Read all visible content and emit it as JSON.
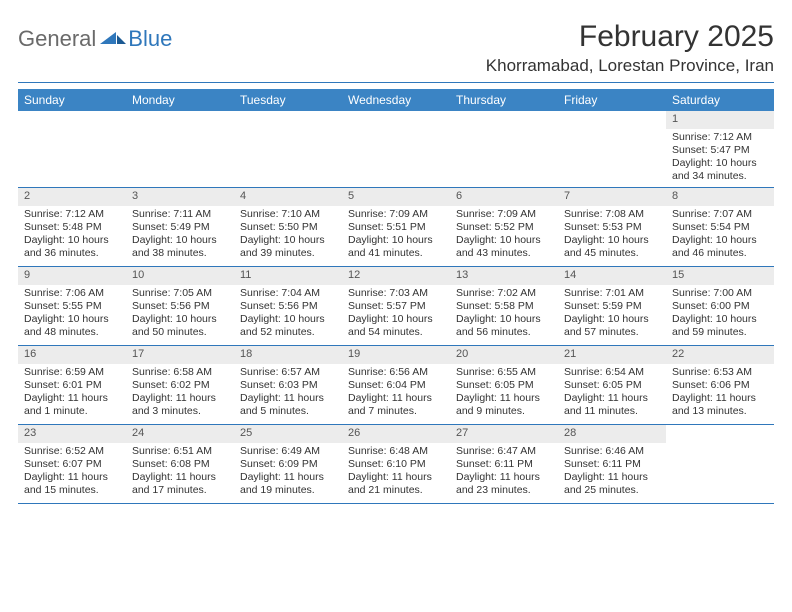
{
  "logo": {
    "general": "General",
    "blue": "Blue"
  },
  "title": "February 2025",
  "location": "Khorramabad, Lorestan Province, Iran",
  "colors": {
    "header_bg": "#3b84c4",
    "header_text": "#ffffff",
    "rule": "#2f77bb",
    "daynum_bg": "#ececec",
    "text": "#333333",
    "logo_gray": "#6a6a6a",
    "logo_blue": "#2f77bb"
  },
  "dow": [
    "Sunday",
    "Monday",
    "Tuesday",
    "Wednesday",
    "Thursday",
    "Friday",
    "Saturday"
  ],
  "weeks": [
    [
      {
        "n": "",
        "sr": "",
        "ss": "",
        "dl": ""
      },
      {
        "n": "",
        "sr": "",
        "ss": "",
        "dl": ""
      },
      {
        "n": "",
        "sr": "",
        "ss": "",
        "dl": ""
      },
      {
        "n": "",
        "sr": "",
        "ss": "",
        "dl": ""
      },
      {
        "n": "",
        "sr": "",
        "ss": "",
        "dl": ""
      },
      {
        "n": "",
        "sr": "",
        "ss": "",
        "dl": ""
      },
      {
        "n": "1",
        "sr": "Sunrise: 7:12 AM",
        "ss": "Sunset: 5:47 PM",
        "dl": "Daylight: 10 hours and 34 minutes."
      }
    ],
    [
      {
        "n": "2",
        "sr": "Sunrise: 7:12 AM",
        "ss": "Sunset: 5:48 PM",
        "dl": "Daylight: 10 hours and 36 minutes."
      },
      {
        "n": "3",
        "sr": "Sunrise: 7:11 AM",
        "ss": "Sunset: 5:49 PM",
        "dl": "Daylight: 10 hours and 38 minutes."
      },
      {
        "n": "4",
        "sr": "Sunrise: 7:10 AM",
        "ss": "Sunset: 5:50 PM",
        "dl": "Daylight: 10 hours and 39 minutes."
      },
      {
        "n": "5",
        "sr": "Sunrise: 7:09 AM",
        "ss": "Sunset: 5:51 PM",
        "dl": "Daylight: 10 hours and 41 minutes."
      },
      {
        "n": "6",
        "sr": "Sunrise: 7:09 AM",
        "ss": "Sunset: 5:52 PM",
        "dl": "Daylight: 10 hours and 43 minutes."
      },
      {
        "n": "7",
        "sr": "Sunrise: 7:08 AM",
        "ss": "Sunset: 5:53 PM",
        "dl": "Daylight: 10 hours and 45 minutes."
      },
      {
        "n": "8",
        "sr": "Sunrise: 7:07 AM",
        "ss": "Sunset: 5:54 PM",
        "dl": "Daylight: 10 hours and 46 minutes."
      }
    ],
    [
      {
        "n": "9",
        "sr": "Sunrise: 7:06 AM",
        "ss": "Sunset: 5:55 PM",
        "dl": "Daylight: 10 hours and 48 minutes."
      },
      {
        "n": "10",
        "sr": "Sunrise: 7:05 AM",
        "ss": "Sunset: 5:56 PM",
        "dl": "Daylight: 10 hours and 50 minutes."
      },
      {
        "n": "11",
        "sr": "Sunrise: 7:04 AM",
        "ss": "Sunset: 5:56 PM",
        "dl": "Daylight: 10 hours and 52 minutes."
      },
      {
        "n": "12",
        "sr": "Sunrise: 7:03 AM",
        "ss": "Sunset: 5:57 PM",
        "dl": "Daylight: 10 hours and 54 minutes."
      },
      {
        "n": "13",
        "sr": "Sunrise: 7:02 AM",
        "ss": "Sunset: 5:58 PM",
        "dl": "Daylight: 10 hours and 56 minutes."
      },
      {
        "n": "14",
        "sr": "Sunrise: 7:01 AM",
        "ss": "Sunset: 5:59 PM",
        "dl": "Daylight: 10 hours and 57 minutes."
      },
      {
        "n": "15",
        "sr": "Sunrise: 7:00 AM",
        "ss": "Sunset: 6:00 PM",
        "dl": "Daylight: 10 hours and 59 minutes."
      }
    ],
    [
      {
        "n": "16",
        "sr": "Sunrise: 6:59 AM",
        "ss": "Sunset: 6:01 PM",
        "dl": "Daylight: 11 hours and 1 minute."
      },
      {
        "n": "17",
        "sr": "Sunrise: 6:58 AM",
        "ss": "Sunset: 6:02 PM",
        "dl": "Daylight: 11 hours and 3 minutes."
      },
      {
        "n": "18",
        "sr": "Sunrise: 6:57 AM",
        "ss": "Sunset: 6:03 PM",
        "dl": "Daylight: 11 hours and 5 minutes."
      },
      {
        "n": "19",
        "sr": "Sunrise: 6:56 AM",
        "ss": "Sunset: 6:04 PM",
        "dl": "Daylight: 11 hours and 7 minutes."
      },
      {
        "n": "20",
        "sr": "Sunrise: 6:55 AM",
        "ss": "Sunset: 6:05 PM",
        "dl": "Daylight: 11 hours and 9 minutes."
      },
      {
        "n": "21",
        "sr": "Sunrise: 6:54 AM",
        "ss": "Sunset: 6:05 PM",
        "dl": "Daylight: 11 hours and 11 minutes."
      },
      {
        "n": "22",
        "sr": "Sunrise: 6:53 AM",
        "ss": "Sunset: 6:06 PM",
        "dl": "Daylight: 11 hours and 13 minutes."
      }
    ],
    [
      {
        "n": "23",
        "sr": "Sunrise: 6:52 AM",
        "ss": "Sunset: 6:07 PM",
        "dl": "Daylight: 11 hours and 15 minutes."
      },
      {
        "n": "24",
        "sr": "Sunrise: 6:51 AM",
        "ss": "Sunset: 6:08 PM",
        "dl": "Daylight: 11 hours and 17 minutes."
      },
      {
        "n": "25",
        "sr": "Sunrise: 6:49 AM",
        "ss": "Sunset: 6:09 PM",
        "dl": "Daylight: 11 hours and 19 minutes."
      },
      {
        "n": "26",
        "sr": "Sunrise: 6:48 AM",
        "ss": "Sunset: 6:10 PM",
        "dl": "Daylight: 11 hours and 21 minutes."
      },
      {
        "n": "27",
        "sr": "Sunrise: 6:47 AM",
        "ss": "Sunset: 6:11 PM",
        "dl": "Daylight: 11 hours and 23 minutes."
      },
      {
        "n": "28",
        "sr": "Sunrise: 6:46 AM",
        "ss": "Sunset: 6:11 PM",
        "dl": "Daylight: 11 hours and 25 minutes."
      },
      {
        "n": "",
        "sr": "",
        "ss": "",
        "dl": ""
      }
    ]
  ]
}
